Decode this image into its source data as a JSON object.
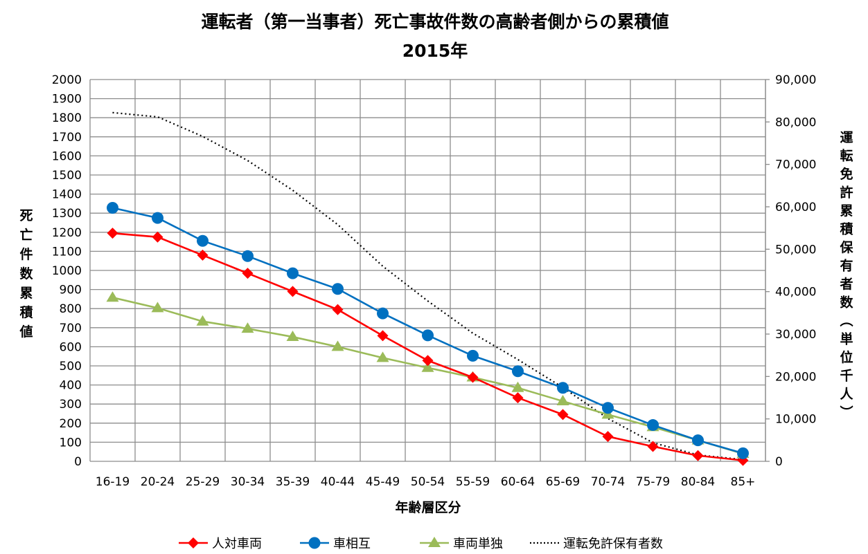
{
  "chart_data": {
    "type": "line",
    "title": "運転者（第一当事者）死亡事故件数の高齢者側からの累積値",
    "subtitle": "2015年",
    "xlabel": "年齢層区分",
    "ylabel": "死亡件数累積値",
    "y2label": "運転免許累積保有者数（単位千人）",
    "categories": [
      "16-19",
      "20-24",
      "25-29",
      "30-34",
      "35-39",
      "40-44",
      "45-49",
      "50-54",
      "55-59",
      "60-64",
      "65-69",
      "70-74",
      "75-79",
      "80-84",
      "85+"
    ],
    "ylim": [
      0,
      2000
    ],
    "yticks": [
      "0",
      "100",
      "200",
      "300",
      "400",
      "500",
      "600",
      "700",
      "800",
      "900",
      "1000",
      "1100",
      "1200",
      "1300",
      "1400",
      "1500",
      "1600",
      "1700",
      "1800",
      "1900",
      "2000"
    ],
    "y2lim": [
      0,
      90000
    ],
    "y2ticks": [
      "0",
      "10,000",
      "20,000",
      "30,000",
      "40,000",
      "50,000",
      "60,000",
      "70,000",
      "80,000",
      "90,000"
    ],
    "grid": true,
    "legend_position": "bottom",
    "series": [
      {
        "name": "人対車両",
        "axis": "left",
        "color": "#ff0000",
        "marker": "diamond",
        "values": [
          1195,
          1175,
          1080,
          985,
          890,
          795,
          658,
          528,
          440,
          333,
          245,
          130,
          78,
          30,
          5
        ]
      },
      {
        "name": "車相互",
        "axis": "left",
        "color": "#0070c0",
        "marker": "circle",
        "values": [
          1328,
          1275,
          1155,
          1075,
          985,
          903,
          775,
          660,
          553,
          472,
          385,
          280,
          190,
          110,
          42
        ]
      },
      {
        "name": "車両単独",
        "axis": "left",
        "color": "#9bbb59",
        "marker": "triangle",
        "values": [
          858,
          803,
          733,
          695,
          652,
          600,
          542,
          490,
          440,
          385,
          315,
          245,
          180,
          110,
          40
        ]
      },
      {
        "name": "運転免許保有者数",
        "axis": "right",
        "color": "#000000",
        "marker": "dotted",
        "values": [
          82200,
          81200,
          76600,
          70900,
          63900,
          55800,
          46000,
          37800,
          30200,
          24000,
          17400,
          10100,
          4400,
          1500,
          400
        ]
      }
    ]
  }
}
